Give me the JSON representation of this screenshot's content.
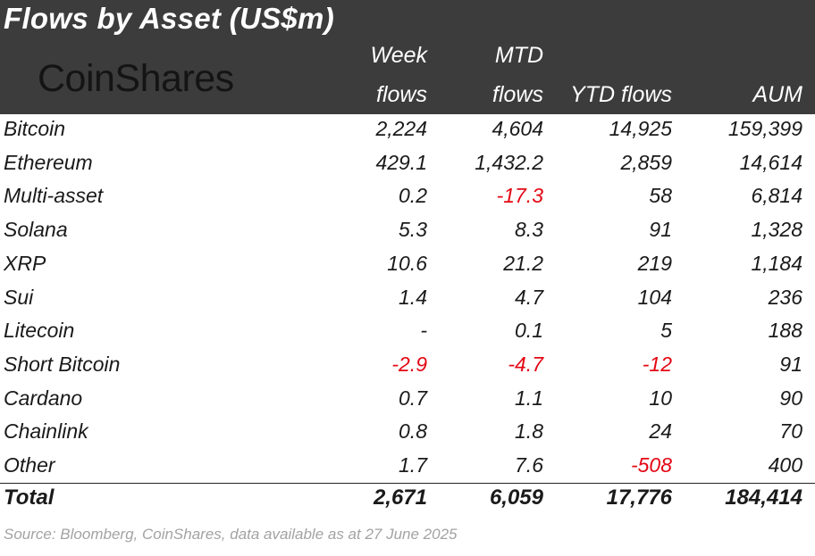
{
  "chart_data": {
    "type": "table",
    "title": "Flows by Asset (US$m)",
    "brand": "CoinShares",
    "columns": [
      {
        "line1": "Week",
        "line2": "flows"
      },
      {
        "line1": "MTD",
        "line2": "flows"
      },
      {
        "line1": "",
        "line2": "YTD flows"
      },
      {
        "line1": "",
        "line2": "AUM"
      }
    ],
    "rows": [
      {
        "asset": "Bitcoin",
        "values": [
          "2,224",
          "4,604",
          "14,925",
          "159,399"
        ]
      },
      {
        "asset": "Ethereum",
        "values": [
          "429.1",
          "1,432.2",
          "2,859",
          "14,614"
        ]
      },
      {
        "asset": "Multi-asset",
        "values": [
          "0.2",
          "-17.3",
          "58",
          "6,814"
        ]
      },
      {
        "asset": "Solana",
        "values": [
          "5.3",
          "8.3",
          "91",
          "1,328"
        ]
      },
      {
        "asset": "XRP",
        "values": [
          "10.6",
          "21.2",
          "219",
          "1,184"
        ]
      },
      {
        "asset": "Sui",
        "values": [
          "1.4",
          "4.7",
          "104",
          "236"
        ]
      },
      {
        "asset": "Litecoin",
        "values": [
          "-",
          "0.1",
          "5",
          "188"
        ]
      },
      {
        "asset": "Short Bitcoin",
        "values": [
          "-2.9",
          "-4.7",
          "-12",
          "91"
        ]
      },
      {
        "asset": "Cardano",
        "values": [
          "0.7",
          "1.1",
          "10",
          "90"
        ]
      },
      {
        "asset": "Chainlink",
        "values": [
          "0.8",
          "1.8",
          "24",
          "70"
        ]
      },
      {
        "asset": "Other",
        "values": [
          "1.7",
          "7.6",
          "-508",
          "400"
        ]
      }
    ],
    "total": {
      "label": "Total",
      "values": [
        "2,671",
        "6,059",
        "17,776",
        "184,414"
      ]
    },
    "source": "Source: Bloomberg, CoinShares, data available as at 27 June 2025",
    "negative_color": "#e30613",
    "header_background": "#3c3c3c"
  }
}
